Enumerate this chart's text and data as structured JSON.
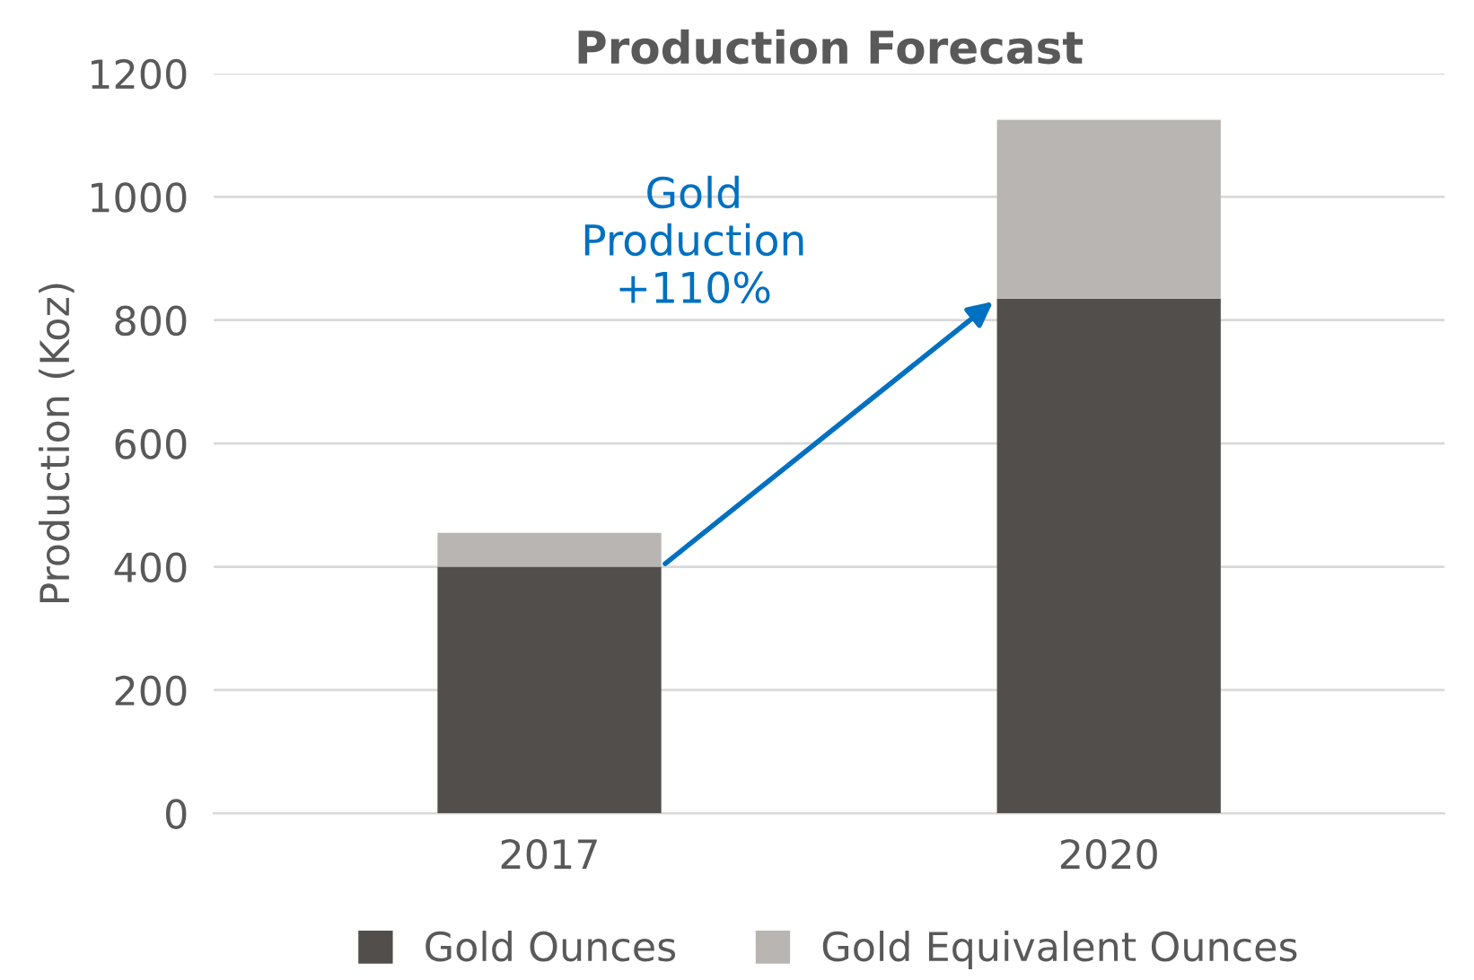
{
  "chart_data": {
    "type": "bar",
    "title": "Production Forecast",
    "ylabel": "Production (Koz)",
    "categories": [
      "2017",
      "2020"
    ],
    "stacked": true,
    "series": [
      {
        "name": "Gold Ounces",
        "color": "#524e4b",
        "values": [
          400,
          835
        ]
      },
      {
        "name": "Gold Equivalent Ounces",
        "color": "#b8b5b2",
        "values": [
          55,
          290
        ]
      }
    ],
    "ylim": [
      0,
      1200
    ],
    "yticks": [
      0,
      200,
      400,
      600,
      800,
      1000,
      1200
    ],
    "grid": "y",
    "legend": "bottom",
    "annotations": [
      "Gold\nProduction\n+110%"
    ]
  }
}
